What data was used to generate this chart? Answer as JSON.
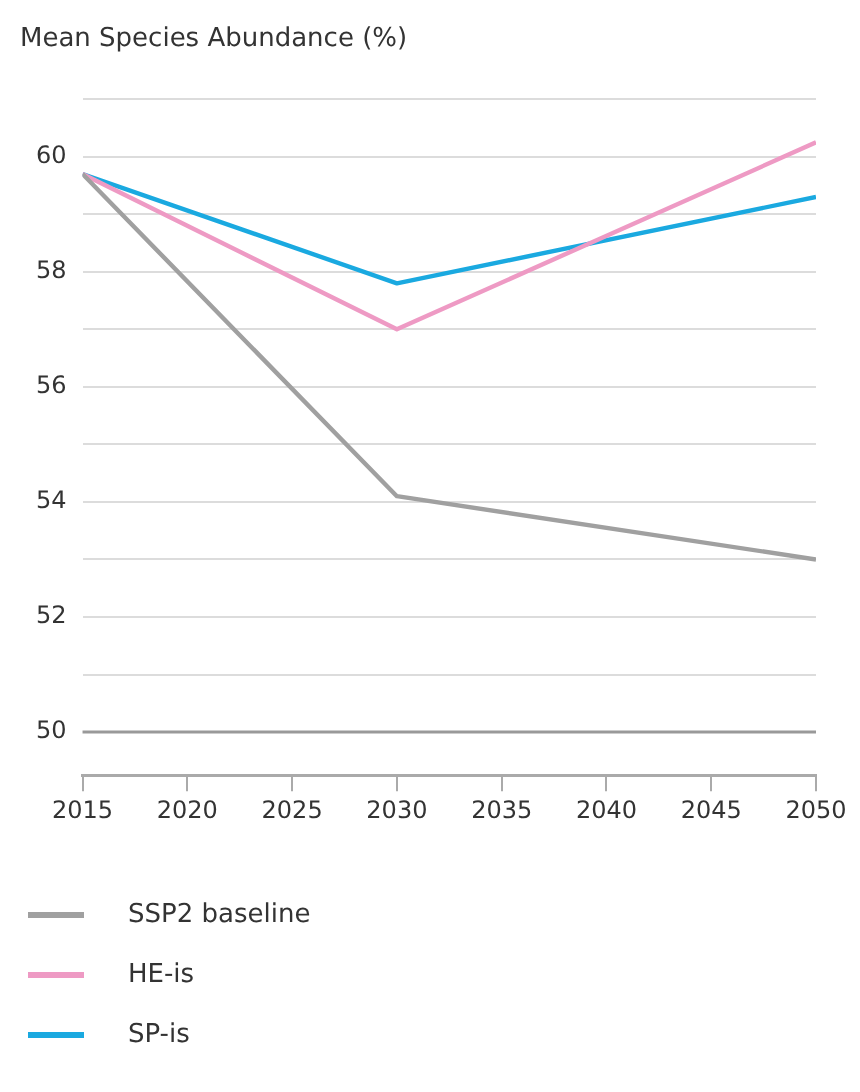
{
  "chart_data": {
    "type": "line",
    "title": "Mean Species Abundance (%)",
    "x": [
      2015,
      2030,
      2050
    ],
    "series": [
      {
        "name": "SSP2 baseline",
        "color": "#a0a0a0",
        "values": [
          59.7,
          54.1,
          53.0
        ]
      },
      {
        "name": "HE-is",
        "color": "#ee9ac4",
        "values": [
          59.7,
          57.0,
          60.25
        ]
      },
      {
        "name": "SP-is",
        "color": "#1aa9e0",
        "values": [
          59.7,
          57.8,
          59.3
        ]
      }
    ],
    "xlim": [
      2015,
      2050
    ],
    "xticks": [
      2015,
      2020,
      2025,
      2030,
      2035,
      2040,
      2045,
      2050
    ],
    "ylim": [
      49.25,
      61
    ],
    "yticks": [
      50,
      {
        "value": 51,
        "label": null
      },
      52,
      {
        "value": 53,
        "label": null
      },
      54,
      {
        "value": 55,
        "label": null
      },
      56,
      {
        "value": 57,
        "label": null
      },
      58,
      {
        "value": 59,
        "label": null
      },
      60,
      {
        "value": 61,
        "label": null
      }
    ],
    "ref_lines": [
      {
        "axis": "y",
        "value": 50,
        "color": "#999999"
      }
    ],
    "grid": "y",
    "legend": "bottom",
    "marker": "none",
    "line_style": "solid"
  }
}
